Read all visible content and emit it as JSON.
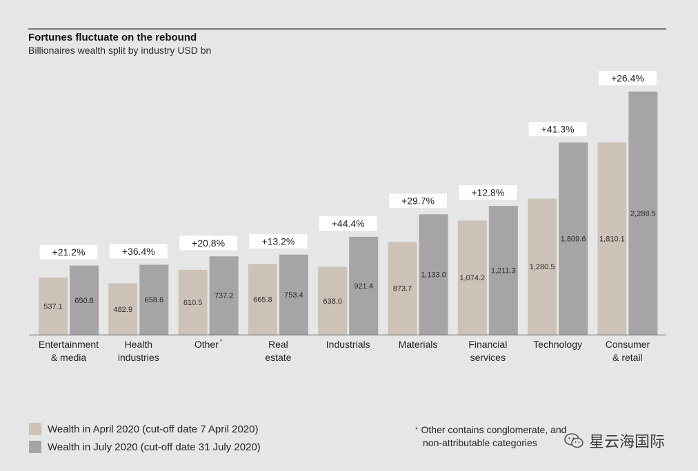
{
  "chart_data": {
    "type": "bar",
    "title": "Fortunes fluctuate on the rebound",
    "subtitle": "Billionaires wealth split by industry USD bn",
    "categories": [
      [
        "Entertainment",
        "& media"
      ],
      [
        "Health",
        "industries"
      ],
      [
        "Other"
      ],
      [
        "Real",
        "estate"
      ],
      [
        "Industrials"
      ],
      [
        "Materials"
      ],
      [
        "Financial",
        "services"
      ],
      [
        "Technology"
      ],
      [
        "Consumer",
        "& retail"
      ]
    ],
    "category_markers": [
      "",
      "",
      "*",
      "",
      "",
      "",
      "",
      "",
      ""
    ],
    "series": [
      {
        "name": "Wealth in April 2020 (cut-off date 7 April 2020)",
        "values": [
          537.1,
          482.9,
          610.5,
          665.8,
          638.0,
          873.7,
          1074.2,
          1280.5,
          1810.1
        ],
        "labels": [
          "537.1",
          "482.9",
          "610.5",
          "665.8",
          "638.0",
          "873.7",
          "1,074.2",
          "1,280.5",
          "1,810.1"
        ],
        "color": "#ccc2b7"
      },
      {
        "name": "Wealth in July 2020 (cut-off date 31 July 2020)",
        "values": [
          650.8,
          658.6,
          737.2,
          753.4,
          921.4,
          1133.0,
          1211.3,
          1809.6,
          2288.5
        ],
        "labels": [
          "650.8",
          "658.6",
          "737.2",
          "753.4",
          "921.4",
          "1,133.0",
          "1,211.3",
          "1,809.6",
          "2,288.5"
        ],
        "color": "#a6a4a6"
      }
    ],
    "change_labels": [
      "+21.2%",
      "+36.4%",
      "+20.8%",
      "+13.2%",
      "+44.4%",
      "+29.7%",
      "+12.8%",
      "+41.3%",
      "+26.4%"
    ],
    "ylim": [
      0,
      2288.5
    ],
    "grid": false,
    "legend_position": "bottom-left"
  },
  "legend": {
    "april_label": "Wealth in April 2020 (cut-off date 7 April 2020)",
    "july_label": "Wealth in July 2020 (cut-off date 31 July 2020)"
  },
  "footnote": {
    "marker": "*",
    "line1": "Other contains conglomerate, and",
    "line2": "non-attributable categories"
  },
  "watermark": {
    "text": "星云海国际",
    "icon": "wechat-icon"
  }
}
